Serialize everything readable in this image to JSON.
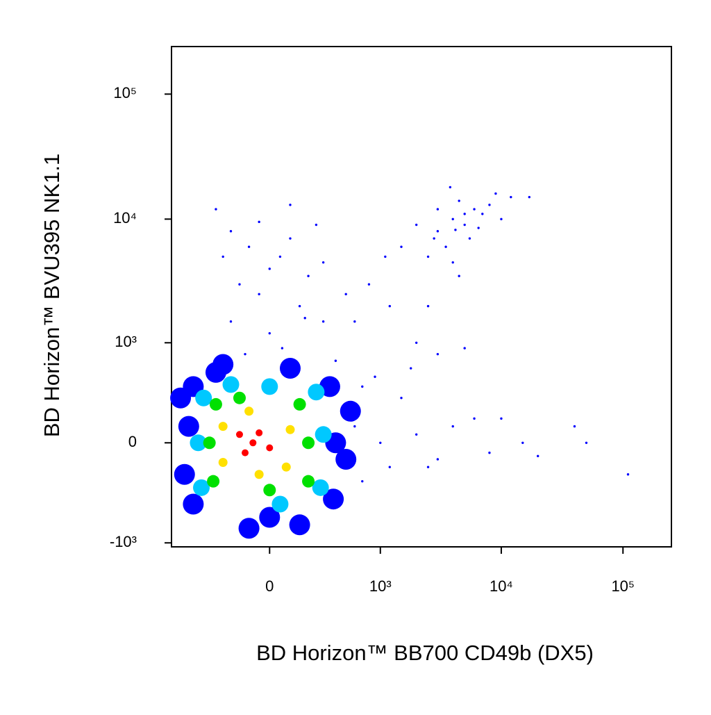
{
  "chart_data": {
    "type": "scatter",
    "x_label": "BD Horizon™ BB700 CD49b (DX5)",
    "y_label": "BD Horizon™ BVU395 NK1.1",
    "xscale": "logicle",
    "yscale": "logicle",
    "xlim": [
      -780,
      250000
    ],
    "ylim": [
      -1080,
      240000
    ],
    "xticks": [
      0,
      {
        "value": 1000,
        "label": "10³"
      },
      {
        "value": 10000,
        "label": "10⁴"
      },
      {
        "value": 100000,
        "label": "10⁵"
      }
    ],
    "yticks": [
      {
        "value": -1000,
        "label": "-10³"
      },
      0,
      {
        "value": 1000,
        "label": "10³"
      },
      {
        "value": 10000,
        "label": "10⁴"
      },
      {
        "value": 100000,
        "label": "10⁵"
      }
    ],
    "series": [
      {
        "color": "#0000ff",
        "x": [
          -550,
          400,
          -300,
          0,
          -500,
          380,
          350,
          -500,
          -600,
          500,
          -100,
          150,
          -250,
          100,
          -650,
          550
        ],
        "y": [
          100,
          0,
          550,
          -600,
          -450,
          -400,
          400,
          400,
          -200,
          -100,
          -750,
          -700,
          650,
          600,
          300,
          200
        ]
      },
      {
        "color": "#00c8ff",
        "x": [
          -450,
          300,
          -200,
          50,
          -400,
          280,
          -420,
          250,
          0
        ],
        "y": [
          0,
          50,
          420,
          -450,
          300,
          -300,
          -300,
          350,
          400
        ]
      },
      {
        "color": "#00e000",
        "x": [
          -350,
          200,
          -150,
          0,
          150,
          -300,
          200,
          -320
        ],
        "y": [
          0,
          0,
          300,
          -320,
          250,
          250,
          -250,
          -250
        ]
      },
      {
        "color": "#ffe000",
        "x": [
          -250,
          100,
          -100,
          -50,
          80,
          -250
        ],
        "y": [
          100,
          80,
          200,
          -200,
          -150,
          -120
        ]
      },
      {
        "color": "#ff0000",
        "x": [
          -80,
          -50,
          -120,
          0,
          -150
        ],
        "y": [
          0,
          60,
          -60,
          -30,
          50
        ]
      },
      {
        "color": "#0000ff",
        "x": [
          -300,
          -200,
          -100,
          0,
          -150,
          50,
          100,
          200,
          -50,
          150,
          -200,
          0,
          250,
          300,
          -250,
          100,
          -50,
          180,
          -120,
          60,
          3000,
          4000,
          5000,
          3500,
          6000,
          2500,
          4500,
          7000,
          3000,
          5500,
          8000,
          2000,
          4000,
          6500,
          3800,
          12000,
          9000,
          2800,
          5000,
          4200,
          17000,
          1500,
          4500,
          10000,
          800,
          1200,
          600,
          2000,
          400,
          900,
          1500,
          3000,
          700,
          500,
          1100,
          300,
          2500,
          5000,
          1800,
          600,
          1000,
          2000,
          3000,
          4000,
          8000,
          15000,
          40000,
          50000,
          110000,
          6000,
          10000,
          1200,
          700,
          20000,
          2500
        ],
        "y": [
          12000,
          8000,
          6000,
          4000,
          3000,
          5000,
          7000,
          3500,
          2500,
          2000,
          1500,
          1200,
          9000,
          4500,
          5000,
          13000,
          9500,
          1600,
          800,
          900,
          8000,
          10000,
          9000,
          6000,
          12000,
          5000,
          14000,
          11000,
          12000,
          7000,
          13000,
          9000,
          4500,
          8500,
          18000,
          15000,
          16000,
          7000,
          11000,
          8200,
          15000,
          6000,
          3500,
          10000,
          3000,
          2000,
          1500,
          1000,
          700,
          500,
          300,
          800,
          400,
          2500,
          5000,
          1500,
          2000,
          900,
          600,
          100,
          0,
          50,
          -100,
          100,
          -60,
          0,
          100,
          0,
          -200,
          150,
          150,
          -150,
          -250,
          -80,
          -150
        ]
      }
    ]
  }
}
